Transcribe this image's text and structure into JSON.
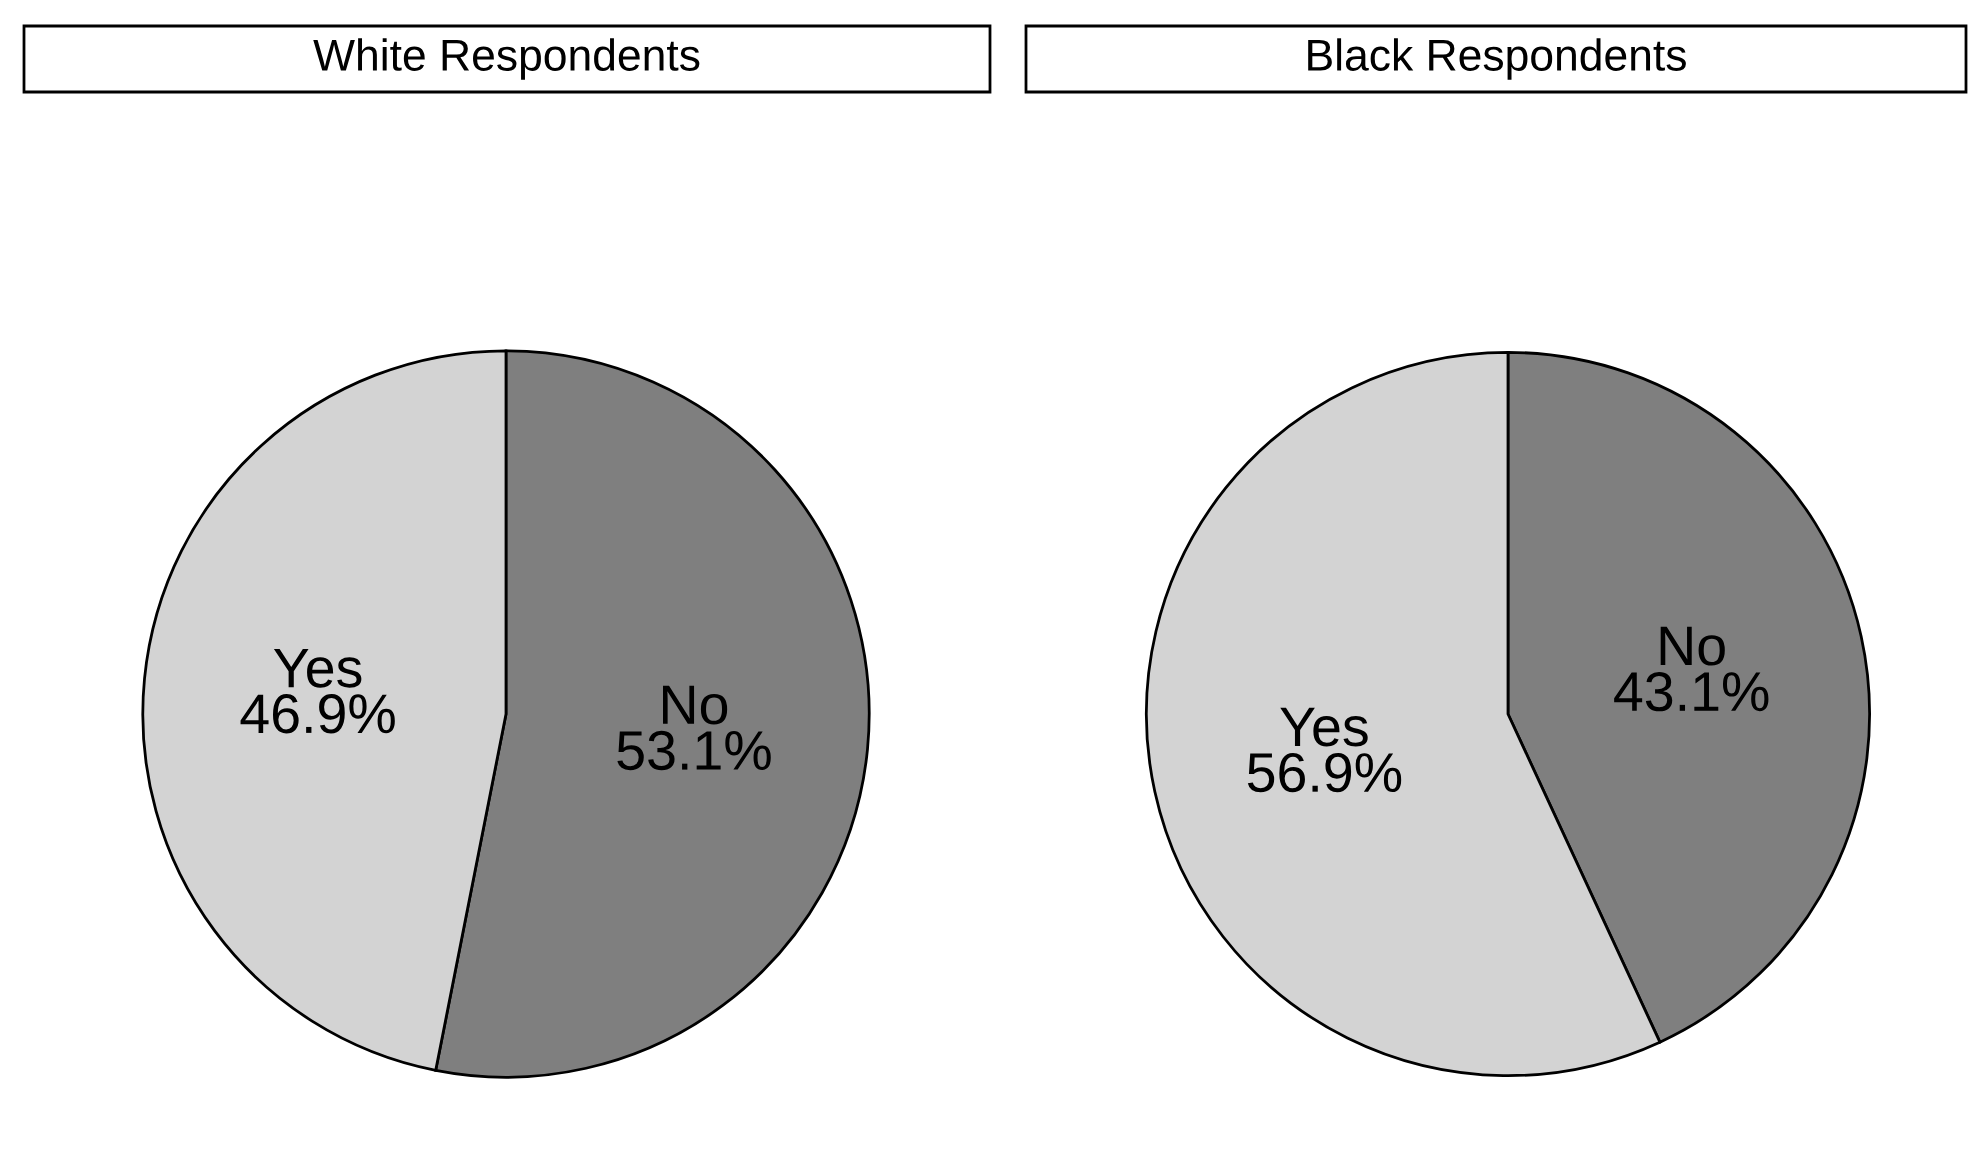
{
  "chart_data": [
    {
      "type": "pie",
      "title": "White Respondents",
      "categories": [
        "No",
        "Yes"
      ],
      "values": [
        53.1,
        46.9
      ],
      "colors": [
        "#7f7f7f",
        "#d3d3d3"
      ],
      "value_labels": [
        "53.1%",
        "46.9%"
      ]
    },
    {
      "type": "pie",
      "title": "Black Respondents",
      "categories": [
        "No",
        "Yes"
      ],
      "values": [
        43.1,
        56.9
      ],
      "colors": [
        "#7f7f7f",
        "#d3d3d3"
      ],
      "value_labels": [
        "43.1%",
        "56.9%"
      ]
    }
  ]
}
